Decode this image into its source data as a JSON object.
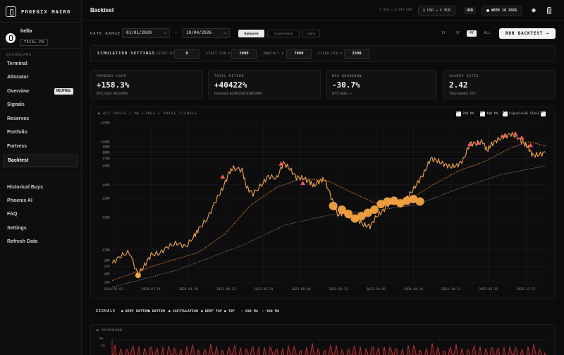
{
  "app": {
    "brand": "PHOENIX MACRO"
  },
  "user": {
    "name": "hello",
    "badge": "TRIAL PD"
  },
  "sidebar": {
    "section_label": "DASHBOARD",
    "items": [
      {
        "label": "Terminal"
      },
      {
        "label": "Allocator"
      },
      {
        "label": "Overview",
        "badge": "NEUTRAL"
      },
      {
        "label": "Signals"
      },
      {
        "label": "Reserves"
      },
      {
        "label": "Portfolio"
      },
      {
        "label": "Fortress"
      },
      {
        "label": "Backtest",
        "active": true
      }
    ],
    "footer_items": [
      {
        "label": "Historical Buys"
      },
      {
        "label": "Phoenix AI"
      },
      {
        "label": "FAQ"
      },
      {
        "label": "Settings"
      },
      {
        "label": "Refresh Data"
      }
    ]
  },
  "header": {
    "title": "Backtest",
    "fx_rate": "1 USD = 0.849 EUR",
    "fx_toggle": "$ USD ↔ € EUR",
    "currency": "USD",
    "week": "WEEK 16 2026",
    "icons": [
      "sun-icon",
      "theme-icon"
    ]
  },
  "controls": {
    "date_range_label": "DATE RANGE",
    "start_date": "01/01/2020",
    "end_date": "19/04/2026",
    "strategies": [
      {
        "label": "Balanced",
        "active": true
      },
      {
        "label": "Conservative"
      },
      {
        "label": "Alpha"
      }
    ],
    "periods": [
      {
        "label": "1Y"
      },
      {
        "label": "3Y"
      },
      {
        "label": "4Y",
        "active": true
      },
      {
        "label": "ALL"
      }
    ],
    "run_label": "RUN BACKTEST →"
  },
  "simulation": {
    "title": "SIMULATION SETTINGS",
    "fields": [
      {
        "label": "START BTC",
        "value": "0"
      },
      {
        "label": "START CSH €",
        "value": "2000"
      },
      {
        "label": "MONTHLY €",
        "value": "7000"
      },
      {
        "label": "FIXED DCA €",
        "value": "2500"
      }
    ]
  },
  "stats": [
    {
      "label": "PHOENIX CAGR",
      "value": "+158.3%",
      "sub": "BTC hold: 403229%"
    },
    {
      "label": "TOTAL RETURN",
      "value": "+40422%",
      "sub": "Invested: EUR332K EUR348K"
    },
    {
      "label": "MAX DRAWDOWN",
      "value": "-30.7%",
      "sub": "BTC hold: —"
    },
    {
      "label": "SHARPE RATIO",
      "value": "2.42",
      "sub": "Total weeks: 329"
    }
  ],
  "chart_panel": {
    "title": "● BTC PRICE + MA LINES + PHASE SIGNALS",
    "legend": [
      {
        "label": "200 MA",
        "checked": true
      },
      {
        "label": "400 MA",
        "checked": true
      },
      {
        "label": "Signals",
        "checked": true
      },
      {
        "label": "LOG SCALE",
        "checked": true
      }
    ]
  },
  "chart_data": {
    "type": "line",
    "scale": "log",
    "grid": true,
    "y_ticks": [
      {
        "value": 5000,
        "label": "$5K"
      },
      {
        "value": 6000,
        "label": "$6K"
      },
      {
        "value": 7000,
        "label": "$7K"
      },
      {
        "value": 8000,
        "label": "$8K"
      },
      {
        "value": 10000,
        "label": "$10K"
      },
      {
        "value": 20000,
        "label": "$20K"
      },
      {
        "value": 30000,
        "label": "$30K"
      },
      {
        "value": 40000,
        "label": "$40K"
      },
      {
        "value": 60000,
        "label": "$60K"
      },
      {
        "value": 70000,
        "label": "$70K"
      },
      {
        "value": 80000,
        "label": "$80K"
      },
      {
        "value": 90000,
        "label": "$90K"
      },
      {
        "value": 100000,
        "label": "$100K"
      },
      {
        "value": 150000,
        "label": "$150K"
      }
    ],
    "x_ticks": [
      "2020-01-01",
      "2020-07-14",
      "2021-01-28",
      "2021-08-12",
      "2022-02-24",
      "2022-09-08",
      "2023-03-23",
      "2023-10-05",
      "2024-04-18",
      "2024-10-31",
      "2025-05-15",
      "2025-11-27"
    ],
    "ylim": [
      5000,
      150000
    ],
    "series": [
      {
        "name": "BTC",
        "color": "#f4a340",
        "points": [
          [
            0,
            7500
          ],
          [
            0.02,
            8800
          ],
          [
            0.04,
            9500
          ],
          [
            0.06,
            5800
          ],
          [
            0.075,
            7200
          ],
          [
            0.09,
            9000
          ],
          [
            0.11,
            9300
          ],
          [
            0.13,
            10800
          ],
          [
            0.15,
            11500
          ],
          [
            0.17,
            10700
          ],
          [
            0.19,
            13500
          ],
          [
            0.2,
            15600
          ],
          [
            0.22,
            19500
          ],
          [
            0.24,
            29000
          ],
          [
            0.255,
            37000
          ],
          [
            0.27,
            52000
          ],
          [
            0.28,
            57000
          ],
          [
            0.3,
            55000
          ],
          [
            0.31,
            38000
          ],
          [
            0.325,
            33000
          ],
          [
            0.345,
            40000
          ],
          [
            0.36,
            48000
          ],
          [
            0.38,
            46000
          ],
          [
            0.395,
            64000
          ],
          [
            0.41,
            56000
          ],
          [
            0.425,
            47000
          ],
          [
            0.44,
            46000
          ],
          [
            0.455,
            43000
          ],
          [
            0.465,
            39000
          ],
          [
            0.48,
            44000
          ],
          [
            0.49,
            45000
          ],
          [
            0.505,
            31000
          ],
          [
            0.52,
            21000
          ],
          [
            0.535,
            22000
          ],
          [
            0.55,
            20000
          ],
          [
            0.565,
            19500
          ],
          [
            0.58,
            17000
          ],
          [
            0.595,
            16500
          ],
          [
            0.61,
            20500
          ],
          [
            0.625,
            23000
          ],
          [
            0.64,
            27000
          ],
          [
            0.655,
            27500
          ],
          [
            0.665,
            26000
          ],
          [
            0.675,
            29000
          ],
          [
            0.69,
            34000
          ],
          [
            0.705,
            42000
          ],
          [
            0.72,
            52000
          ],
          [
            0.735,
            70000
          ],
          [
            0.75,
            67000
          ],
          [
            0.765,
            62000
          ],
          [
            0.78,
            59000
          ],
          [
            0.795,
            60000
          ],
          [
            0.81,
            68000
          ],
          [
            0.825,
            96000
          ],
          [
            0.84,
            97000
          ],
          [
            0.855,
            100000
          ],
          [
            0.865,
            83000
          ],
          [
            0.875,
            95000
          ],
          [
            0.89,
            105000
          ],
          [
            0.905,
            112000
          ],
          [
            0.92,
            118000
          ],
          [
            0.935,
            110000
          ],
          [
            0.95,
            97000
          ],
          [
            0.96,
            88000
          ],
          [
            0.97,
            75000
          ],
          [
            0.985,
            76000
          ],
          [
            1,
            80000
          ]
        ]
      },
      {
        "name": "200 MA",
        "color": "#e8851f",
        "points": [
          [
            0,
            5200
          ],
          [
            0.1,
            7200
          ],
          [
            0.2,
            9500
          ],
          [
            0.26,
            14000
          ],
          [
            0.32,
            26000
          ],
          [
            0.38,
            38000
          ],
          [
            0.44,
            46000
          ],
          [
            0.5,
            43000
          ],
          [
            0.56,
            33000
          ],
          [
            0.62,
            25500
          ],
          [
            0.68,
            28000
          ],
          [
            0.74,
            40000
          ],
          [
            0.8,
            54000
          ],
          [
            0.86,
            66000
          ],
          [
            0.92,
            88000
          ],
          [
            0.96,
            100000
          ],
          [
            1,
            92000
          ]
        ]
      },
      {
        "name": "400 MA",
        "color": "#9a9a9a",
        "points": [
          [
            0,
            4500
          ],
          [
            0.15,
            6500
          ],
          [
            0.3,
            11000
          ],
          [
            0.4,
            17000
          ],
          [
            0.5,
            21000
          ],
          [
            0.6,
            23000
          ],
          [
            0.7,
            26000
          ],
          [
            0.8,
            37000
          ],
          [
            0.9,
            50000
          ],
          [
            1,
            60000
          ]
        ]
      }
    ],
    "signals": [
      {
        "type": "deep_bottom",
        "points": [
          [
            0.06,
            5800
          ]
        ]
      },
      {
        "type": "peak",
        "points": [
          [
            0.255,
            47000
          ],
          [
            0.39,
            62000
          ],
          [
            0.44,
            41000
          ],
          [
            0.825,
            94000
          ],
          [
            0.845,
            97000
          ],
          [
            0.905,
            113000
          ],
          [
            0.93,
            118000
          ],
          [
            0.945,
            108000
          ],
          [
            0.965,
            92000
          ]
        ]
      },
      {
        "type": "accumulation",
        "points": [
          [
            0.51,
            25500
          ],
          [
            0.53,
            23500
          ],
          [
            0.545,
            21500
          ],
          [
            0.56,
            19500
          ],
          [
            0.575,
            20500
          ],
          [
            0.59,
            22000
          ],
          [
            0.605,
            23500
          ],
          [
            0.62,
            26500
          ],
          [
            0.635,
            28000
          ],
          [
            0.65,
            28500
          ],
          [
            0.665,
            27000
          ],
          [
            0.68,
            28500
          ],
          [
            0.695,
            29500
          ],
          [
            0.71,
            28000
          ]
        ]
      }
    ]
  },
  "signals_legend": {
    "title": "SIGNALS",
    "items": [
      {
        "label": "● DEEP BOTTOM",
        "color": "#22c55e"
      },
      {
        "label": "● BOTTOM",
        "color": "#15803d"
      },
      {
        "label": "● CAPITULATION",
        "color": "#a855f7"
      },
      {
        "label": "● DEEP TOP",
        "color": "#ef4444"
      },
      {
        "label": "● TOP",
        "color": "#f87171"
      },
      {
        "label": "— 200 MA",
        "color": "#e8851f"
      },
      {
        "label": "— 400 MA",
        "color": "#b5b5b5"
      }
    ]
  },
  "drawdown": {
    "title": "● DRAWDOWN",
    "ticks": [
      "0%",
      "-5%"
    ]
  }
}
